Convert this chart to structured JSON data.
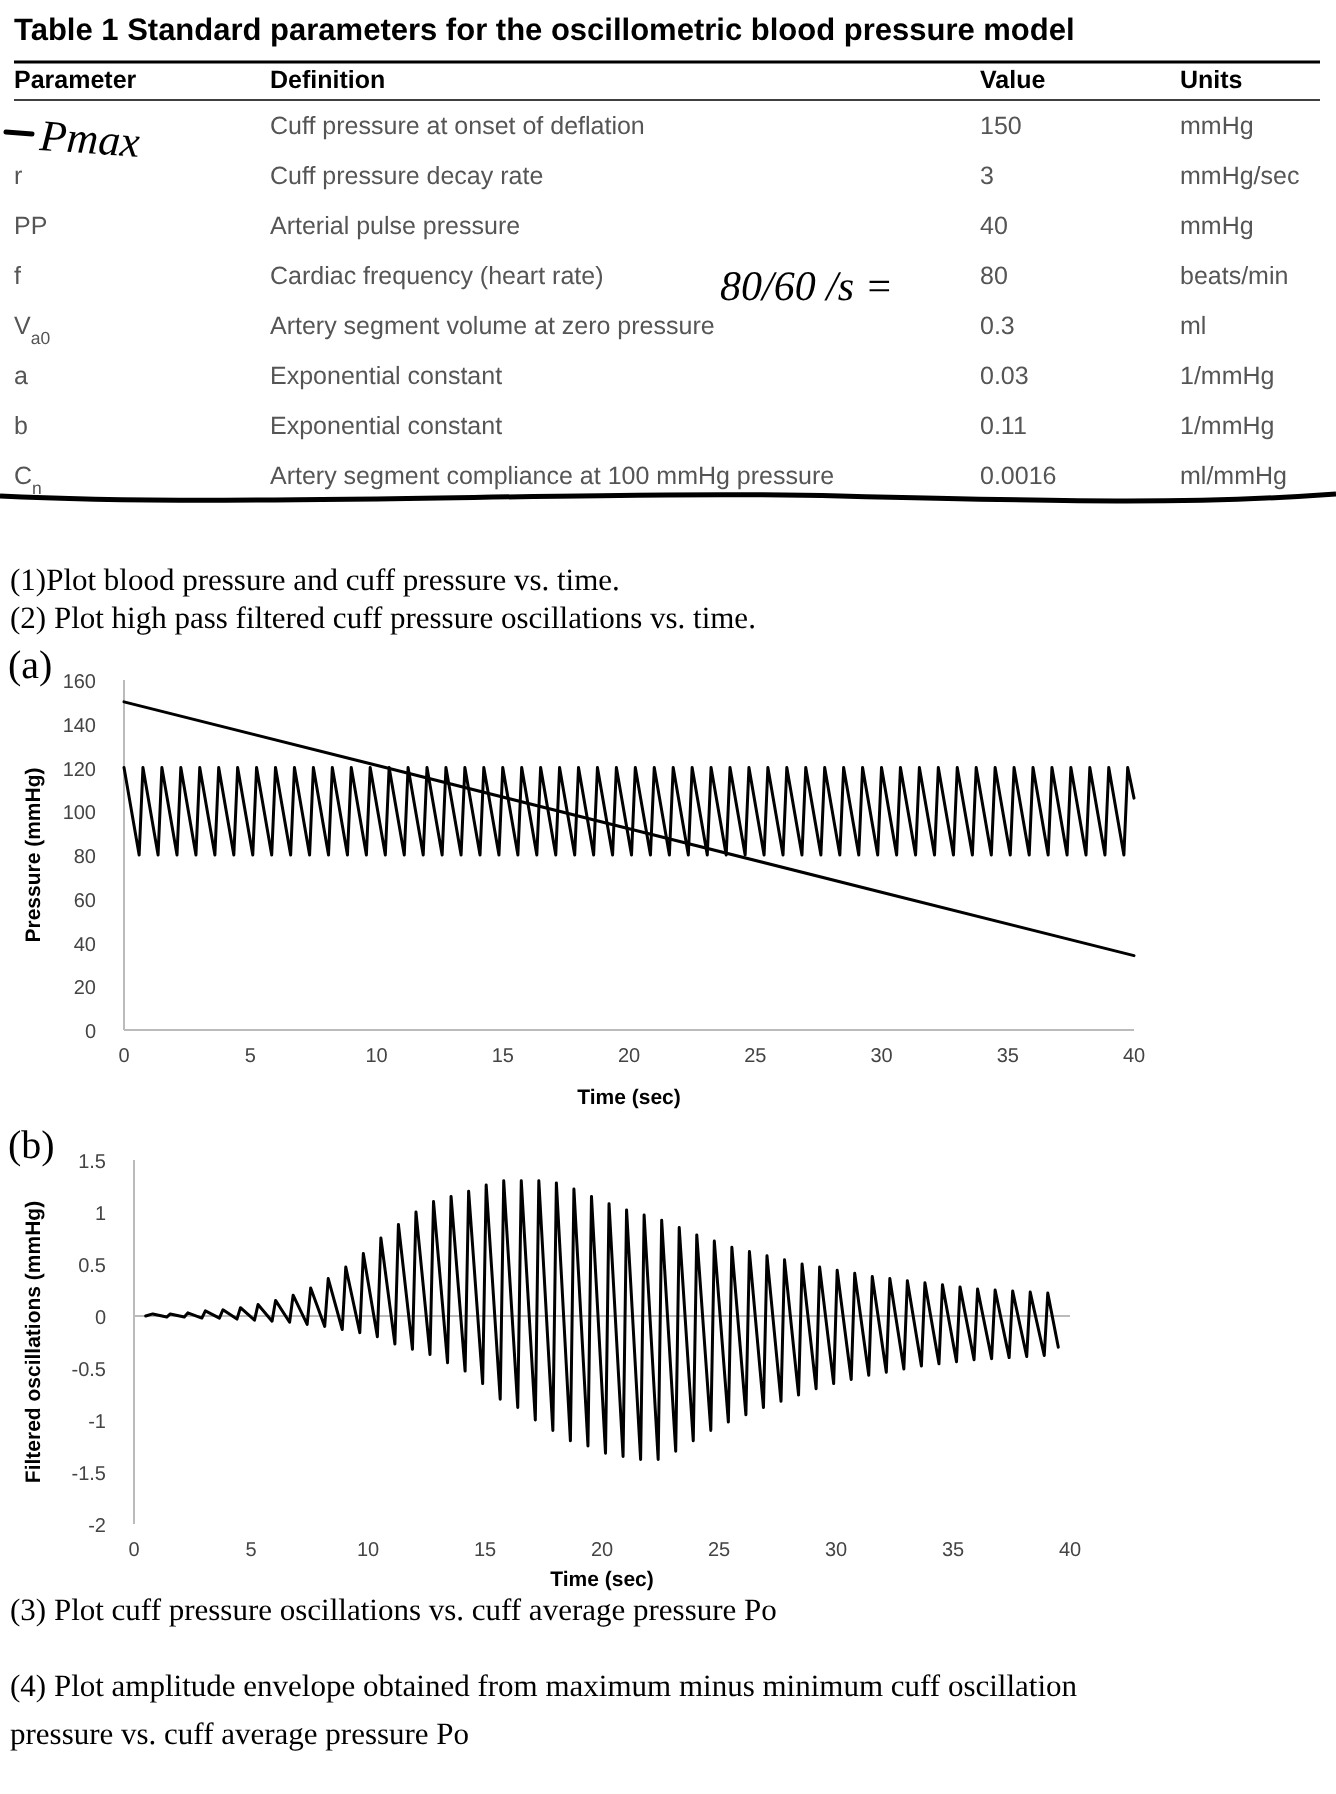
{
  "chart_data": [
    {
      "type": "other",
      "title": "Table 1 Standard parameters for the oscillometric blood pressure model",
      "annotations": [
        "Parameter",
        "Definition",
        "Value",
        "Units",
        "Pmax",
        "Cuff pressure at onset of deflation",
        "150",
        "mmHg",
        "r",
        "Cuff pressure decay rate",
        "3",
        "mmHg/sec",
        "PP",
        "Arterial pulse pressure",
        "40",
        "mmHg",
        "f",
        "Cardiac frequency (heart rate)",
        "80",
        "beats/min",
        "V$_{a0}$",
        "Artery segment volume at zero pressure",
        "0.3",
        "ml",
        "a",
        "Exponential constant",
        "0.03",
        "1/mmHg",
        "b",
        "Exponential constant",
        "0.11",
        "1/mmHg",
        "C$_{n}$",
        "Artery segment compliance at 100 mmHg pressure",
        "0.0016",
        "ml/mmHg",
        "80/60 /s =",
        "(1)Plot blood pressure and cuff pressure vs. time.",
        "(2) Plot high pass filtered cuff pressure oscillations vs. time."
      ]
    },
    {
      "type": "line",
      "title": "(a)",
      "xlabel": "Time (sec)",
      "ylabel": "Pressure (mmHg)",
      "xlim": [
        0,
        40
      ],
      "xticks": [
        0,
        5,
        10,
        15,
        20,
        25,
        30,
        35,
        40
      ],
      "ylim": [
        0,
        160
      ],
      "yticks": [
        0,
        20,
        40,
        60,
        80,
        100,
        120,
        140,
        160
      ],
      "series": [
        {
          "color": "#000000",
          "x": [
            0,
            10,
            20,
            30,
            40
          ],
          "values": [
            150,
            121,
            92,
            63,
            34
          ]
        },
        {
          "color": "#000000",
          "x": [
            0,
            0.6,
            0.75,
            1.35,
            1.5,
            2.1,
            2.25,
            2.85,
            3,
            3.6,
            3.75,
            4.35,
            4.5,
            5.1,
            5.25,
            5.85,
            6,
            6.6,
            6.75,
            7.35,
            7.5,
            8.1,
            8.25,
            8.85,
            9,
            9.6,
            9.75,
            10.35,
            10.5,
            11.1,
            11.25,
            11.85,
            12,
            12.6,
            12.75,
            13.35,
            13.5,
            14.1,
            14.25,
            14.85,
            15,
            15.6,
            15.75,
            16.35,
            16.5,
            17.1,
            17.25,
            17.85,
            18,
            18.6,
            18.75,
            19.35,
            19.5,
            20.1,
            20.25,
            20.85,
            21,
            21.6,
            21.75,
            22.35,
            22.5,
            23.1,
            23.25,
            23.85,
            24,
            24.6,
            24.75,
            25.35,
            25.5,
            26.1,
            26.25,
            26.85,
            27,
            27.6,
            27.75,
            28.35,
            28.5,
            29.1,
            29.25,
            29.85,
            30,
            30.6,
            30.75,
            31.35,
            31.5,
            32.1,
            32.25,
            32.85,
            33,
            33.6,
            33.75,
            34.35,
            34.5,
            35.1,
            35.25,
            35.85,
            36,
            36.6,
            36.75,
            37.35,
            37.5,
            38.1,
            38.25,
            38.85,
            39,
            39.6,
            39.75,
            40
          ],
          "values": [
            120,
            80,
            120,
            80,
            120,
            80,
            120,
            80,
            120,
            80,
            120,
            80,
            120,
            80,
            120,
            80,
            120,
            80,
            120,
            80,
            120,
            80,
            120,
            80,
            120,
            80,
            120,
            80,
            120,
            80,
            120,
            80,
            120,
            80,
            120,
            80,
            120,
            80,
            120,
            80,
            120,
            80,
            120,
            80,
            120,
            80,
            120,
            80,
            120,
            80,
            120,
            80,
            120,
            80,
            120,
            80,
            120,
            80,
            120,
            80,
            120,
            80,
            120,
            80,
            120,
            80,
            120,
            80,
            120,
            80,
            120,
            80,
            120,
            80,
            120,
            80,
            120,
            80,
            120,
            80,
            120,
            80,
            120,
            80,
            120,
            80,
            120,
            80,
            120,
            80,
            120,
            80,
            120,
            80,
            120,
            80,
            120,
            80,
            120,
            80,
            120,
            80,
            120,
            80,
            120,
            80,
            120,
            106
          ]
        }
      ]
    },
    {
      "type": "line",
      "title": "(b)",
      "xlabel": "Time (sec)",
      "ylabel": "Filtered oscillations (mmHg)",
      "xlim": [
        0,
        40
      ],
      "xticks": [
        0,
        5,
        10,
        15,
        20,
        25,
        30,
        35,
        40
      ],
      "ylim": [
        -2,
        1.5
      ],
      "yticks": [
        -2,
        -1.5,
        -1,
        -0.5,
        0,
        0.5,
        1,
        1.5
      ],
      "annotations": [
        "(3) Plot cuff pressure oscillations vs. cuff average pressure Po",
        "(4) Plot amplitude envelope obtained from maximum minus minimum cuff oscillation pressure vs. cuff average pressure Po"
      ],
      "series": [
        {
          "color": "#000000",
          "x": [
            0.5,
            0.8,
            1.4,
            1.55,
            2.15,
            2.3,
            2.9,
            3.05,
            3.65,
            3.8,
            4.4,
            4.55,
            5.15,
            5.3,
            5.9,
            6.05,
            6.65,
            6.8,
            7.4,
            7.55,
            8.15,
            8.3,
            8.9,
            9.05,
            9.65,
            9.8,
            10.4,
            10.55,
            11.15,
            11.3,
            11.9,
            12.05,
            12.65,
            12.8,
            13.4,
            13.55,
            14.15,
            14.3,
            14.9,
            15.05,
            15.65,
            15.8,
            16.4,
            16.55,
            17.15,
            17.3,
            17.9,
            18.05,
            18.65,
            18.8,
            19.4,
            19.55,
            20.15,
            20.3,
            20.9,
            21.05,
            21.65,
            21.8,
            22.4,
            22.55,
            23.15,
            23.3,
            23.9,
            24.05,
            24.65,
            24.8,
            25.4,
            25.55,
            26.15,
            26.3,
            26.9,
            27.05,
            27.65,
            27.8,
            28.4,
            28.55,
            29.15,
            29.3,
            29.9,
            30.05,
            30.65,
            30.8,
            31.4,
            31.55,
            32.15,
            32.3,
            32.9,
            33.05,
            33.65,
            33.8,
            34.4,
            34.55,
            35.15,
            35.3,
            35.9,
            36.05,
            36.65,
            36.8,
            37.4,
            37.55,
            38.15,
            38.3,
            38.9,
            39.05,
            39.5
          ],
          "values": [
            0,
            0.02,
            -0.01,
            0.02,
            -0.01,
            0.03,
            -0.02,
            0.05,
            -0.02,
            0.06,
            -0.03,
            0.08,
            -0.04,
            0.11,
            -0.05,
            0.15,
            -0.06,
            0.2,
            -0.08,
            0.27,
            -0.1,
            0.36,
            -0.13,
            0.47,
            -0.16,
            0.6,
            -0.2,
            0.75,
            -0.27,
            0.88,
            -0.32,
            1,
            -0.37,
            1.1,
            -0.45,
            1.15,
            -0.53,
            1.2,
            -0.65,
            1.26,
            -0.8,
            1.3,
            -0.88,
            1.3,
            -1,
            1.3,
            -1.1,
            1.28,
            -1.2,
            1.22,
            -1.25,
            1.15,
            -1.32,
            1.08,
            -1.35,
            1.02,
            -1.38,
            0.97,
            -1.38,
            0.92,
            -1.3,
            0.85,
            -1.2,
            0.78,
            -1.1,
            0.72,
            -1.02,
            0.66,
            -0.95,
            0.62,
            -0.88,
            0.58,
            -0.82,
            0.54,
            -0.76,
            0.5,
            -0.7,
            0.47,
            -0.65,
            0.44,
            -0.61,
            0.41,
            -0.57,
            0.38,
            -0.54,
            0.36,
            -0.51,
            0.34,
            -0.48,
            0.32,
            -0.46,
            0.3,
            -0.44,
            0.28,
            -0.42,
            0.26,
            -0.41,
            0.25,
            -0.4,
            0.24,
            -0.39,
            0.23,
            -0.38,
            0.22,
            -0.3
          ]
        }
      ]
    }
  ]
}
